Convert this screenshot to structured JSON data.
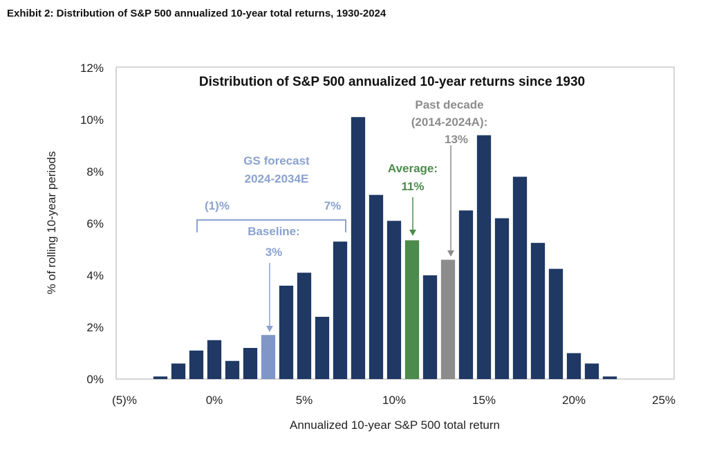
{
  "exhibit_title": "Exhibit 2: Distribution of S&P 500 annualized 10-year total returns, 1930-2024",
  "colors": {
    "bar": "#1f3864",
    "baseline": "#7f96c6",
    "average": "#4b8b4b",
    "past_decade": "#8c8c8c",
    "forecast_text": "#8aa2cf"
  },
  "chart_data": {
    "type": "bar",
    "title": "Distribution of S&P 500 annualized 10-year returns since 1930",
    "xlabel": "Annualized 10-year S&P 500 total return",
    "ylabel": "% of rolling 10-year periods",
    "xlim": [
      -5,
      25
    ],
    "ylim": [
      0,
      12
    ],
    "xticks": [
      -5,
      0,
      5,
      10,
      15,
      20,
      25
    ],
    "xtick_labels": [
      "(5)%",
      "0%",
      "5%",
      "10%",
      "15%",
      "20%",
      "25%"
    ],
    "yticks": [
      0,
      2,
      4,
      6,
      8,
      10,
      12
    ],
    "ytick_labels": [
      "0%",
      "2%",
      "4%",
      "6%",
      "8%",
      "10%",
      "12%"
    ],
    "x": [
      -3,
      -2,
      -1,
      0,
      1,
      2,
      3,
      4,
      5,
      6,
      7,
      8,
      9,
      10,
      11,
      12,
      13,
      14,
      15,
      16,
      17,
      18,
      19,
      20,
      21,
      22
    ],
    "values": [
      0.1,
      0.6,
      1.1,
      1.5,
      0.7,
      1.2,
      1.7,
      3.6,
      4.1,
      2.4,
      5.3,
      10.1,
      7.1,
      6.1,
      5.35,
      4.0,
      4.6,
      6.5,
      9.4,
      6.2,
      7.8,
      5.25,
      4.25,
      1.0,
      0.6,
      0.1
    ],
    "highlights": {
      "3": "baseline",
      "11": "average",
      "13": "past_decade"
    },
    "grid": false,
    "annotations": {
      "forecast_title": [
        "GS forecast",
        "2024-2034E"
      ],
      "forecast_low": "(1)%",
      "forecast_high": "7%",
      "baseline": [
        "Baseline:",
        "3%"
      ],
      "average": [
        "Average:",
        "11%"
      ],
      "past_decade": [
        "Past decade",
        "(2014-2024A):",
        "13%"
      ]
    }
  }
}
